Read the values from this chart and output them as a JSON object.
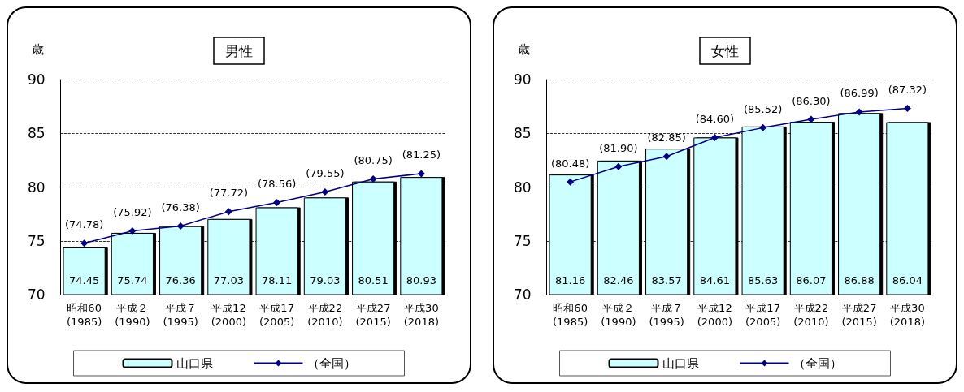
{
  "chart_data": [
    {
      "type": "bar",
      "title": "男性",
      "ylabel": "歳",
      "categories": [
        "昭和60\n(1985)",
        "平成２\n(1990)",
        "平成７\n(1995)",
        "平成12\n(2000)",
        "平成17\n(2005)",
        "平成22\n(2010)",
        "平成27\n(2015)",
        "平成30\n(2018)"
      ],
      "series": [
        {
          "name": "山口県",
          "color": "#ccffff",
          "values": [
            74.45,
            75.74,
            76.36,
            77.03,
            78.11,
            79.03,
            80.51,
            80.93
          ],
          "value_labels": [
            "74.45",
            "75.74",
            "76.36",
            "77.03",
            "78.11",
            "79.03",
            "80.51",
            "80.93"
          ]
        },
        {
          "name": "（全国）",
          "type": "line",
          "color": "#000080",
          "values": [
            74.78,
            75.92,
            76.38,
            77.72,
            78.56,
            79.55,
            80.75,
            81.25
          ],
          "value_labels": [
            "(74.78)",
            "(75.92)",
            "(76.38)",
            "(77.72)",
            "(78.56)",
            "(79.55)",
            "(80.75)",
            "(81.25)"
          ]
        }
      ],
      "ylim": [
        70,
        90
      ],
      "yticks": [
        70,
        75,
        80,
        85,
        90
      ],
      "grid": "y",
      "legend": "bottom",
      "marker": "diamond"
    },
    {
      "type": "bar",
      "title": "女性",
      "ylabel": "歳",
      "categories": [
        "昭和60\n(1985)",
        "平成２\n(1990)",
        "平成７\n(1995)",
        "平成12\n(2000)",
        "平成17\n(2005)",
        "平成22\n(2010)",
        "平成27\n(2015)",
        "平成30\n(2018)"
      ],
      "series": [
        {
          "name": "山口県",
          "color": "#ccffff",
          "values": [
            81.16,
            82.46,
            83.57,
            84.61,
            85.63,
            86.07,
            86.88,
            86.04
          ],
          "value_labels": [
            "81.16",
            "82.46",
            "83.57",
            "84.61",
            "85.63",
            "86.07",
            "86.88",
            "86.04"
          ]
        },
        {
          "name": "（全国）",
          "type": "line",
          "color": "#000080",
          "values": [
            80.48,
            81.9,
            82.85,
            84.6,
            85.52,
            86.3,
            86.99,
            87.32
          ],
          "value_labels": [
            "(80.48)",
            "(81.90)",
            "(82.85)",
            "(84.60)",
            "(85.52)",
            "(86.30)",
            "(86.99)",
            "(87.32)"
          ]
        }
      ],
      "ylim": [
        70,
        90
      ],
      "yticks": [
        70,
        75,
        80,
        85,
        90
      ],
      "grid": "y",
      "legend": "bottom",
      "marker": "diamond"
    }
  ]
}
